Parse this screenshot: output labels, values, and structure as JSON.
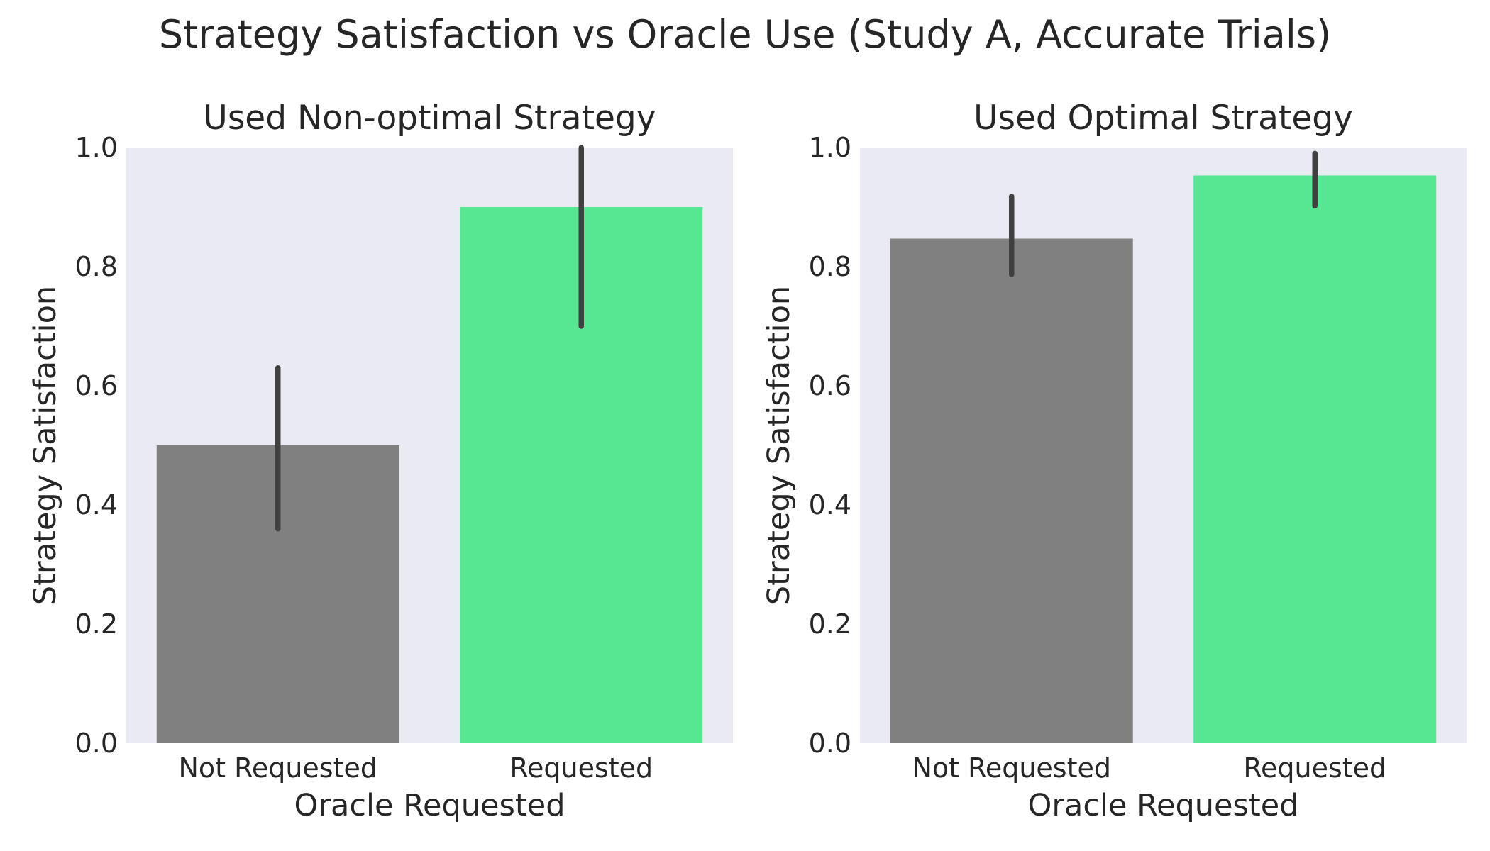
{
  "figure": {
    "title": "Strategy Satisfaction vs Oracle Use (Study A, Accurate Trials)"
  },
  "colors": {
    "panel_bg": "#eaeaf2",
    "not_requested": "#808080",
    "requested": "#57e691",
    "errorbar": "#404040",
    "text": "#262626"
  },
  "chart_data": [
    {
      "type": "bar",
      "title": "Used Non-optimal Strategy",
      "xlabel": "Oracle Requested",
      "ylabel": "Strategy Satisfaction",
      "ylim": [
        0,
        1.0
      ],
      "yticks": [
        "0.0",
        "0.2",
        "0.4",
        "0.6",
        "0.8",
        "1.0"
      ],
      "grid": false,
      "categories": [
        "Not Requested",
        "Requested"
      ],
      "values": [
        0.5,
        0.9
      ],
      "error_low": [
        0.36,
        0.7
      ],
      "error_high": [
        0.63,
        1.0
      ]
    },
    {
      "type": "bar",
      "title": "Used Optimal Strategy",
      "xlabel": "Oracle Requested",
      "ylabel": "Strategy Satisfaction",
      "ylim": [
        0,
        1.0
      ],
      "yticks": [
        "0.0",
        "0.2",
        "0.4",
        "0.6",
        "0.8",
        "1.0"
      ],
      "grid": false,
      "categories": [
        "Not Requested",
        "Requested"
      ],
      "values": [
        0.847,
        0.953
      ],
      "error_low": [
        0.787,
        0.902
      ],
      "error_high": [
        0.918,
        0.99
      ]
    }
  ]
}
